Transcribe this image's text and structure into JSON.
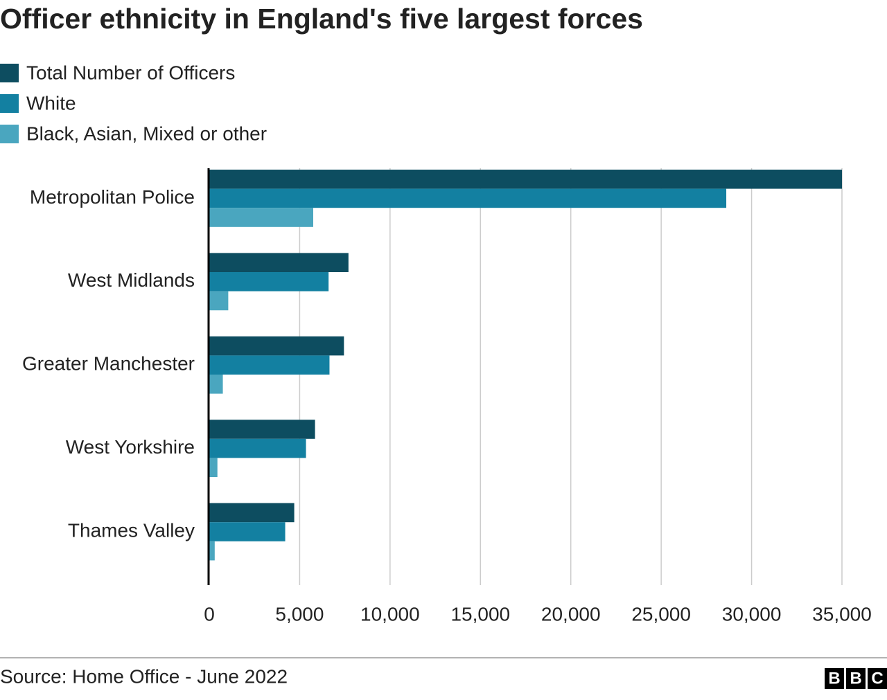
{
  "chart_data": {
    "type": "hbar",
    "title": "Officer ethnicity in England's five largest forces",
    "categories": [
      "Metropolitan Police",
      "West Midlands",
      "Greater Manchester",
      "West Yorkshire",
      "Thames Valley"
    ],
    "series": [
      {
        "name": "Total Number of Officers",
        "color": "#0d4d60",
        "values": [
          35000,
          7700,
          7450,
          5850,
          4700
        ]
      },
      {
        "name": "White",
        "color": "#1380a1",
        "values": [
          28600,
          6600,
          6650,
          5350,
          4200
        ]
      },
      {
        "name": "Black, Asian, Mixed or other",
        "color": "#4aa6bf",
        "values": [
          5750,
          1050,
          750,
          450,
          300
        ]
      }
    ],
    "xlim": [
      0,
      35000
    ],
    "xticks": [
      0,
      {
        "value": 5000,
        "label": "5,000"
      },
      {
        "value": 10000,
        "label": "10,000"
      },
      {
        "value": 15000,
        "label": "15,000"
      },
      {
        "value": 20000,
        "label": "20,000"
      },
      {
        "value": 25000,
        "label": "25,000"
      },
      {
        "value": 30000,
        "label": "30,000"
      },
      {
        "value": 35000,
        "label": "35,000"
      }
    ],
    "grid": true,
    "source": "Source: Home Office - June 2022",
    "logo": [
      "B",
      "B",
      "C"
    ]
  }
}
